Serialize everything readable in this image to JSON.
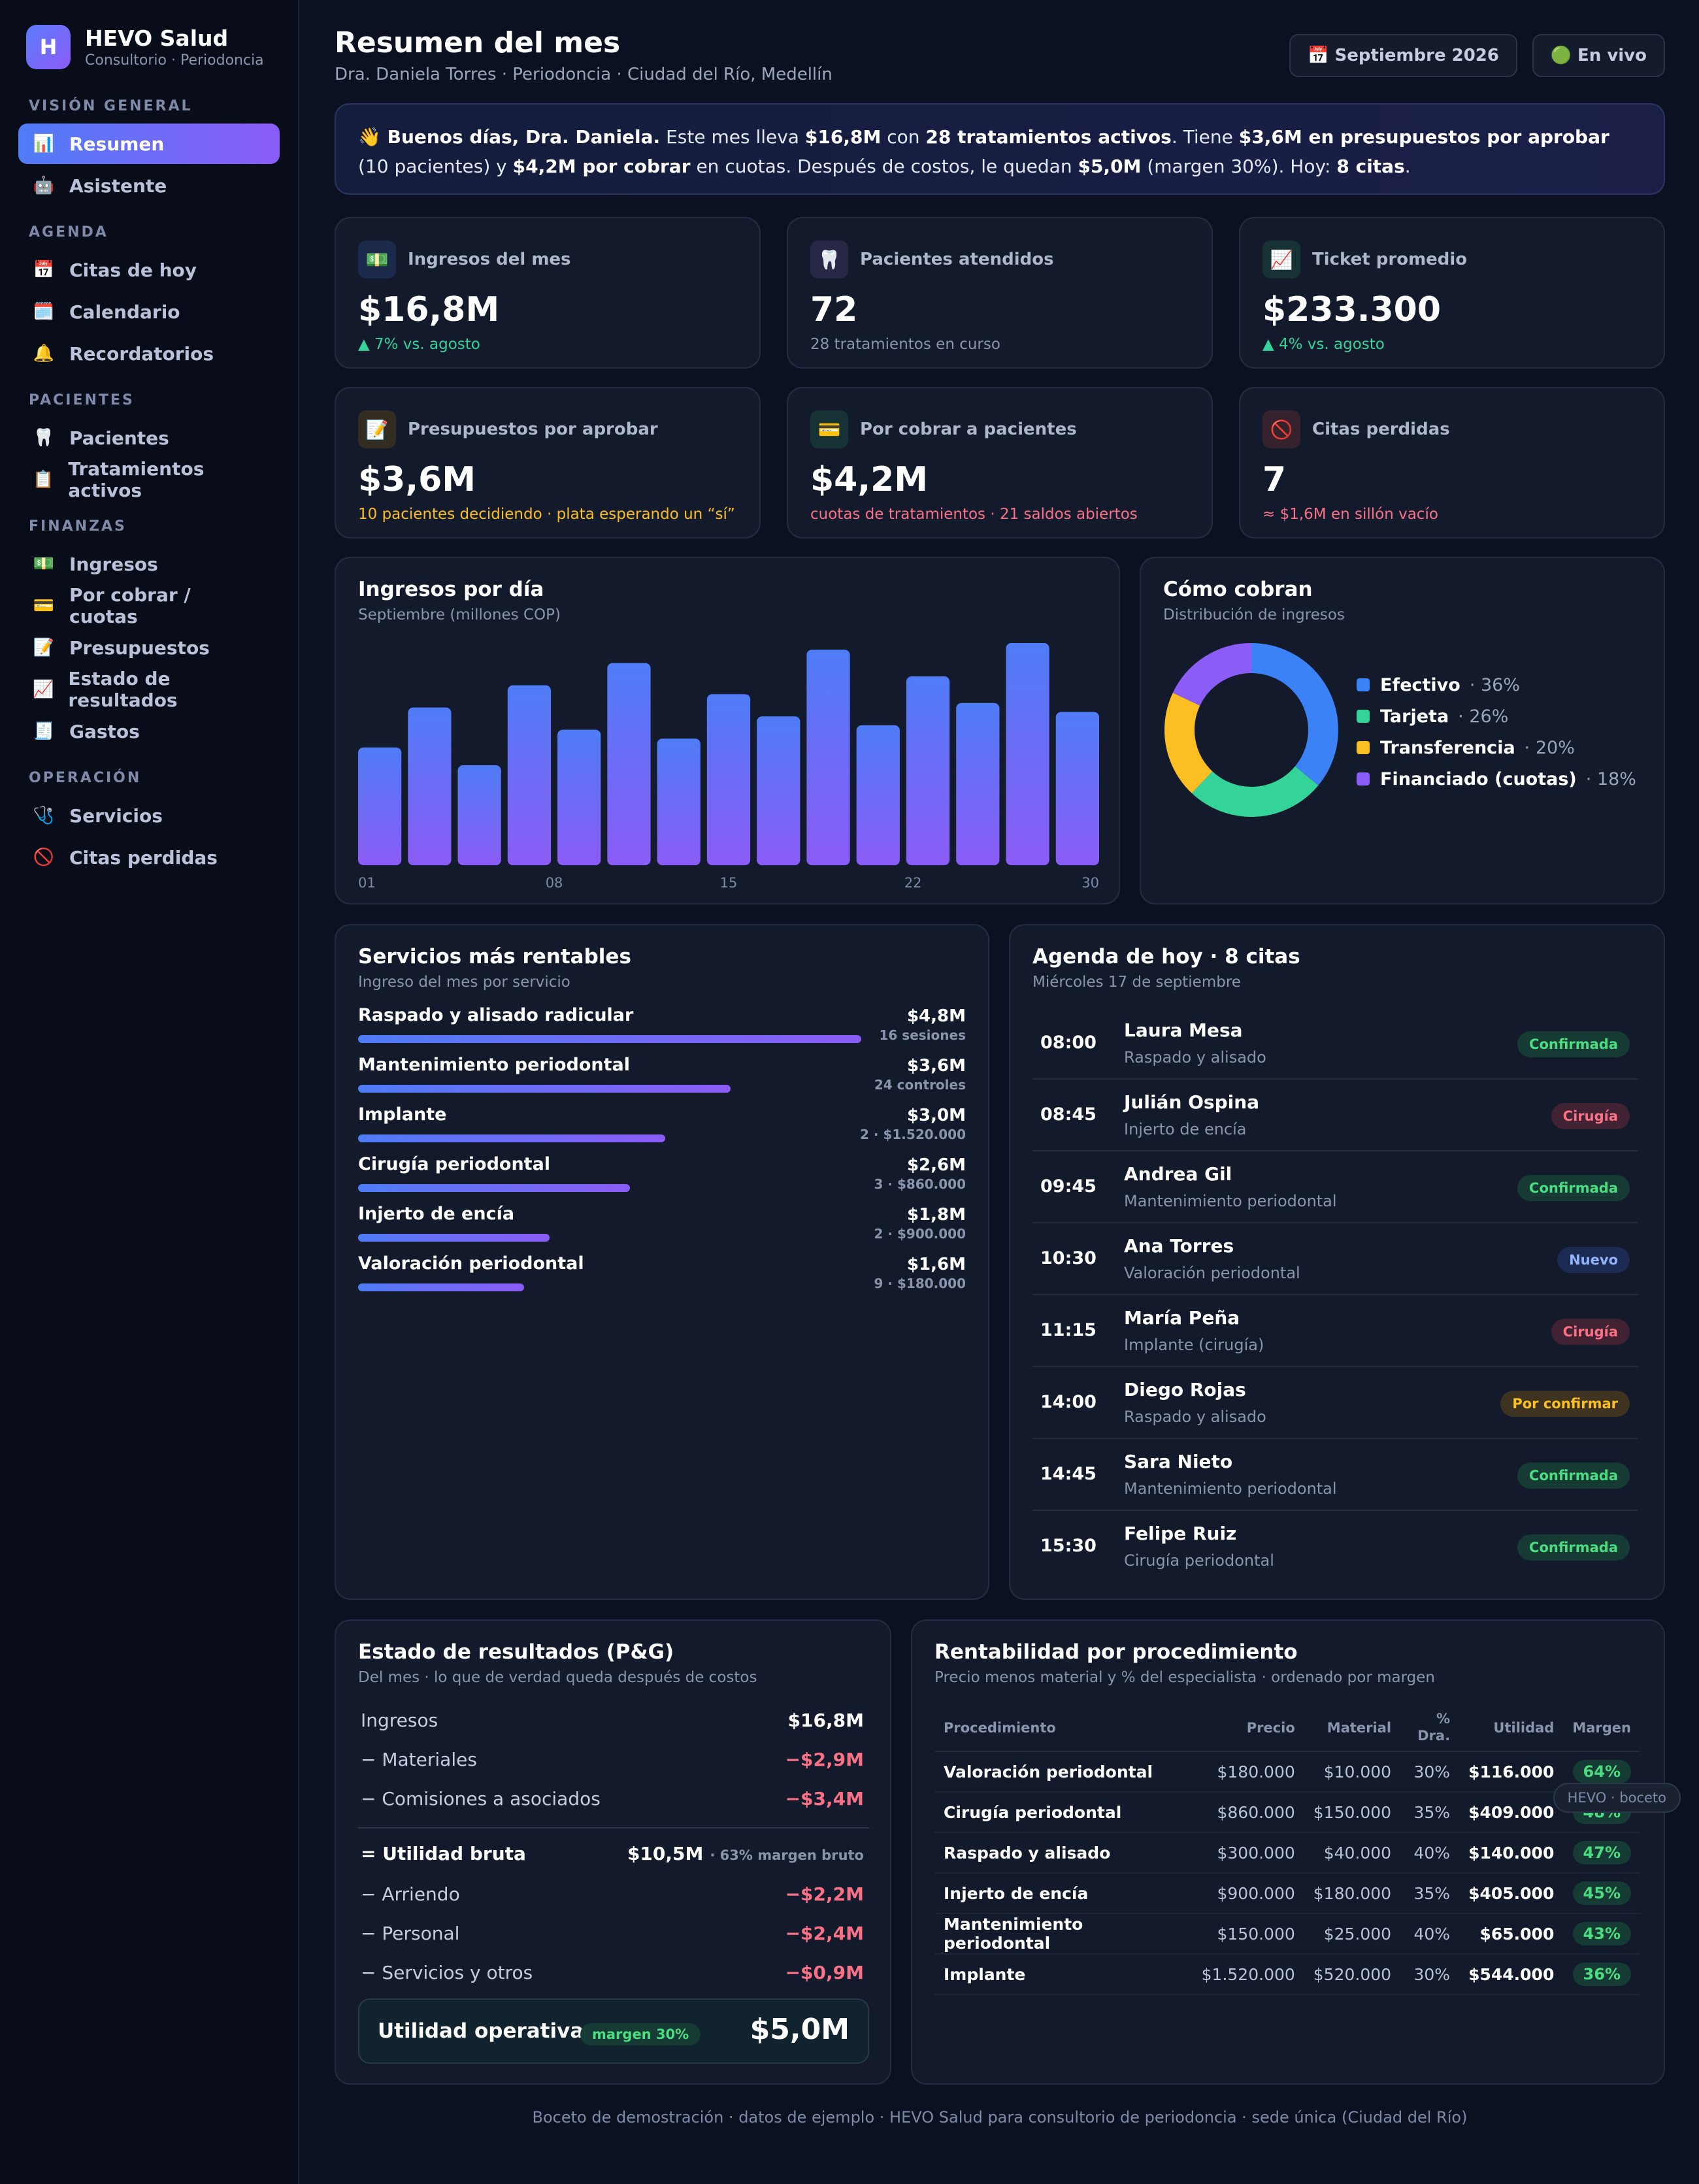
{
  "brand": {
    "initial": "H",
    "name": "HEVO Salud",
    "sub": "Consultorio · Periodoncia"
  },
  "nav": {
    "sections": [
      {
        "title": "VISIÓN GENERAL",
        "items": [
          {
            "icon": "📊",
            "label": "Resumen",
            "active": true
          },
          {
            "icon": "🤖",
            "label": "Asistente"
          }
        ]
      },
      {
        "title": "AGENDA",
        "items": [
          {
            "icon": "📅",
            "label": "Citas de hoy"
          },
          {
            "icon": "🗓️",
            "label": "Calendario"
          },
          {
            "icon": "🔔",
            "label": "Recordatorios"
          }
        ]
      },
      {
        "title": "PACIENTES",
        "items": [
          {
            "icon": "🦷",
            "label": "Pacientes"
          },
          {
            "icon": "📋",
            "label": "Tratamientos activos"
          }
        ]
      },
      {
        "title": "FINANZAS",
        "items": [
          {
            "icon": "💵",
            "label": "Ingresos"
          },
          {
            "icon": "💳",
            "label": "Por cobrar / cuotas"
          },
          {
            "icon": "📝",
            "label": "Presupuestos"
          },
          {
            "icon": "📈",
            "label": "Estado de resultados"
          },
          {
            "icon": "🧾",
            "label": "Gastos"
          }
        ]
      },
      {
        "title": "OPERACIÓN",
        "items": [
          {
            "icon": "🩺",
            "label": "Servicios"
          },
          {
            "icon": "🚫",
            "label": "Citas perdidas"
          }
        ]
      }
    ]
  },
  "header": {
    "title": "Resumen del mes",
    "subtitle": "Dra. Daniela Torres · Periodoncia · Ciudad del Río, Medellín",
    "month_pill": "📅 Septiembre 2026",
    "live_pill": "🟢 En vivo"
  },
  "banner": {
    "greeting": "👋 Buenos días, Dra. Daniela.",
    "t1": " Este mes lleva ",
    "b1": "$16,8M",
    "t2": " con ",
    "b2": "28 tratamientos activos",
    "t3": ". Tiene ",
    "b3": "$3,6M en presupuestos por aprobar",
    "t4": " (10 pacientes) y ",
    "b4": "$4,2M por cobrar",
    "t5": " en cuotas. Después de costos, le quedan ",
    "b5": "$5,0M",
    "t6": " (margen 30%). Hoy: ",
    "b6": "8 citas",
    "t7": "."
  },
  "kpis": [
    {
      "icon": "💵",
      "label": "Ingresos del mes",
      "value": "$16,8M",
      "note": "▲ 7% vs. agosto",
      "tone": "green",
      "icon_bg": "#1b2a4a"
    },
    {
      "icon": "🦷",
      "label": "Pacientes atendidos",
      "value": "72",
      "note": "28 tratamientos en curso",
      "tone": "muted",
      "icon_bg": "#262845"
    },
    {
      "icon": "📈",
      "label": "Ticket promedio",
      "value": "$233.300",
      "note": "▲ 4% vs. agosto",
      "tone": "green",
      "icon_bg": "#173234"
    },
    {
      "icon": "📝",
      "label": "Presupuestos por aprobar",
      "value": "$3,6M",
      "note": "10 pacientes decidiendo · plata esperando un “sí”",
      "tone": "amber",
      "icon_bg": "#332c22"
    },
    {
      "icon": "💳",
      "label": "Por cobrar a pacientes",
      "value": "$4,2M",
      "note": "cuotas de tratamientos · 21 saldos abiertos",
      "tone": "red",
      "icon_bg": "#173234"
    },
    {
      "icon": "🚫",
      "label": "Citas perdidas",
      "value": "7",
      "note": "≈ $1,6M en sillón vacío",
      "tone": "red",
      "icon_bg": "#35222d"
    }
  ],
  "daily": {
    "title": "Ingresos por día",
    "sub": "Septiembre (millones COP)",
    "x_labels": [
      "01",
      "08",
      "15",
      "22",
      "30"
    ],
    "chart_data": {
      "type": "bar",
      "values": [
        0.53,
        0.71,
        0.45,
        0.81,
        0.61,
        0.91,
        0.57,
        0.77,
        0.67,
        0.97,
        0.63,
        0.85,
        0.73,
        1.0,
        0.69
      ]
    }
  },
  "payments": {
    "title": "Cómo cobran",
    "sub": "Distribución de ingresos",
    "chart_data": {
      "type": "pie",
      "slices": [
        {
          "label": "Efectivo",
          "value": 36,
          "color": "#3b82f6",
          "pct": "· 36%"
        },
        {
          "label": "Tarjeta",
          "value": 26,
          "color": "#34d399",
          "pct": "· 26%"
        },
        {
          "label": "Transferencia",
          "value": 20,
          "color": "#fbbf24",
          "pct": "· 20%"
        },
        {
          "label": "Financiado (cuotas)",
          "value": 18,
          "color": "#8b5cf6",
          "pct": "· 18%"
        }
      ]
    }
  },
  "services": {
    "title": "Servicios más rentables",
    "sub": "Ingreso del mes por servicio",
    "items": [
      {
        "name": "Raspado y alisado radicular",
        "value": "$4,8M",
        "detail": "16 sesiones",
        "frac": 1.0
      },
      {
        "name": "Mantenimiento periodontal",
        "value": "$3,6M",
        "detail": "24 controles",
        "frac": 0.74
      },
      {
        "name": "Implante",
        "value": "$3,0M",
        "detail": "2 · $1.520.000",
        "frac": 0.61
      },
      {
        "name": "Cirugía periodontal",
        "value": "$2,6M",
        "detail": "3 · $860.000",
        "frac": 0.54
      },
      {
        "name": "Injerto de encía",
        "value": "$1,8M",
        "detail": "2 · $900.000",
        "frac": 0.38
      },
      {
        "name": "Valoración periodontal",
        "value": "$1,6M",
        "detail": "9 · $180.000",
        "frac": 0.33
      }
    ]
  },
  "agenda": {
    "title": "Agenda de hoy · 8 citas",
    "sub": "Miércoles 17 de septiembre",
    "items": [
      {
        "time": "08:00",
        "name": "Laura Mesa",
        "proc": "Raspado y alisado",
        "status": "Confirmada",
        "kind": "b-ok"
      },
      {
        "time": "08:45",
        "name": "Julián Ospina",
        "proc": "Injerto de encía",
        "status": "Cirugía",
        "kind": "b-cir"
      },
      {
        "time": "09:45",
        "name": "Andrea Gil",
        "proc": "Mantenimiento periodontal",
        "status": "Confirmada",
        "kind": "b-ok"
      },
      {
        "time": "10:30",
        "name": "Ana Torres",
        "proc": "Valoración periodontal",
        "status": "Nuevo",
        "kind": "b-new"
      },
      {
        "time": "11:15",
        "name": "María Peña",
        "proc": "Implante (cirugía)",
        "status": "Cirugía",
        "kind": "b-cir"
      },
      {
        "time": "14:00",
        "name": "Diego Rojas",
        "proc": "Raspado y alisado",
        "status": "Por confirmar",
        "kind": "b-pend"
      },
      {
        "time": "14:45",
        "name": "Sara Nieto",
        "proc": "Mantenimiento periodontal",
        "status": "Confirmada",
        "kind": "b-ok"
      },
      {
        "time": "15:30",
        "name": "Felipe Ruiz",
        "proc": "Cirugía periodontal",
        "status": "Confirmada",
        "kind": "b-ok"
      }
    ]
  },
  "pl": {
    "title": "Estado de resultados (P&G)",
    "sub": "Del mes · lo que de verdad queda después de costos",
    "rows": [
      {
        "label": "Ingresos",
        "value": "$16,8M",
        "tone": "plain"
      },
      {
        "label": "− Materiales",
        "value": "−$2,9M",
        "tone": "neg"
      },
      {
        "label": "− Comisiones a asociados",
        "value": "−$3,4M",
        "tone": "neg"
      }
    ],
    "gross_label": "= Utilidad bruta",
    "gross_value": "$10,5M",
    "gross_note": "· 63% margen bruto",
    "rows2": [
      {
        "label": "− Arriendo",
        "value": "−$2,2M",
        "tone": "neg"
      },
      {
        "label": "− Personal",
        "value": "−$2,4M",
        "tone": "neg"
      },
      {
        "label": "− Servicios y otros",
        "value": "−$0,9M",
        "tone": "neg"
      }
    ],
    "op_label": "Utilidad operativa",
    "op_badge": "margen 30%",
    "op_value": "$5,0M"
  },
  "procedures": {
    "title": "Rentabilidad por procedimiento",
    "sub": "Precio menos material y % del especialista · ordenado por margen",
    "headers": {
      "proc": "Procedimiento",
      "price": "Precio",
      "material": "Material",
      "pct": "% Dra.",
      "util": "Utilidad",
      "margin": "Margen"
    },
    "rows": [
      {
        "proc": "Valoración periodontal",
        "price": "$180.000",
        "material": "$10.000",
        "pct": "30%",
        "util": "$116.000",
        "margin": "64%"
      },
      {
        "proc": "Cirugía periodontal",
        "price": "$860.000",
        "material": "$150.000",
        "pct": "35%",
        "util": "$409.000",
        "margin": "48%"
      },
      {
        "proc": "Raspado y alisado",
        "price": "$300.000",
        "material": "$40.000",
        "pct": "40%",
        "util": "$140.000",
        "margin": "47%"
      },
      {
        "proc": "Injerto de encía",
        "price": "$900.000",
        "material": "$180.000",
        "pct": "35%",
        "util": "$405.000",
        "margin": "45%"
      },
      {
        "proc": "Mantenimiento periodontal",
        "price": "$150.000",
        "material": "$25.000",
        "pct": "40%",
        "util": "$65.000",
        "margin": "43%"
      },
      {
        "proc": "Implante",
        "price": "$1.520.000",
        "material": "$520.000",
        "pct": "30%",
        "util": "$544.000",
        "margin": "36%"
      }
    ],
    "overlay": "HEVO · boceto"
  },
  "footer": "Boceto de demostración · datos de ejemplo · HEVO Salud para consultorio de periodoncia · sede única (Ciudad del Río)"
}
